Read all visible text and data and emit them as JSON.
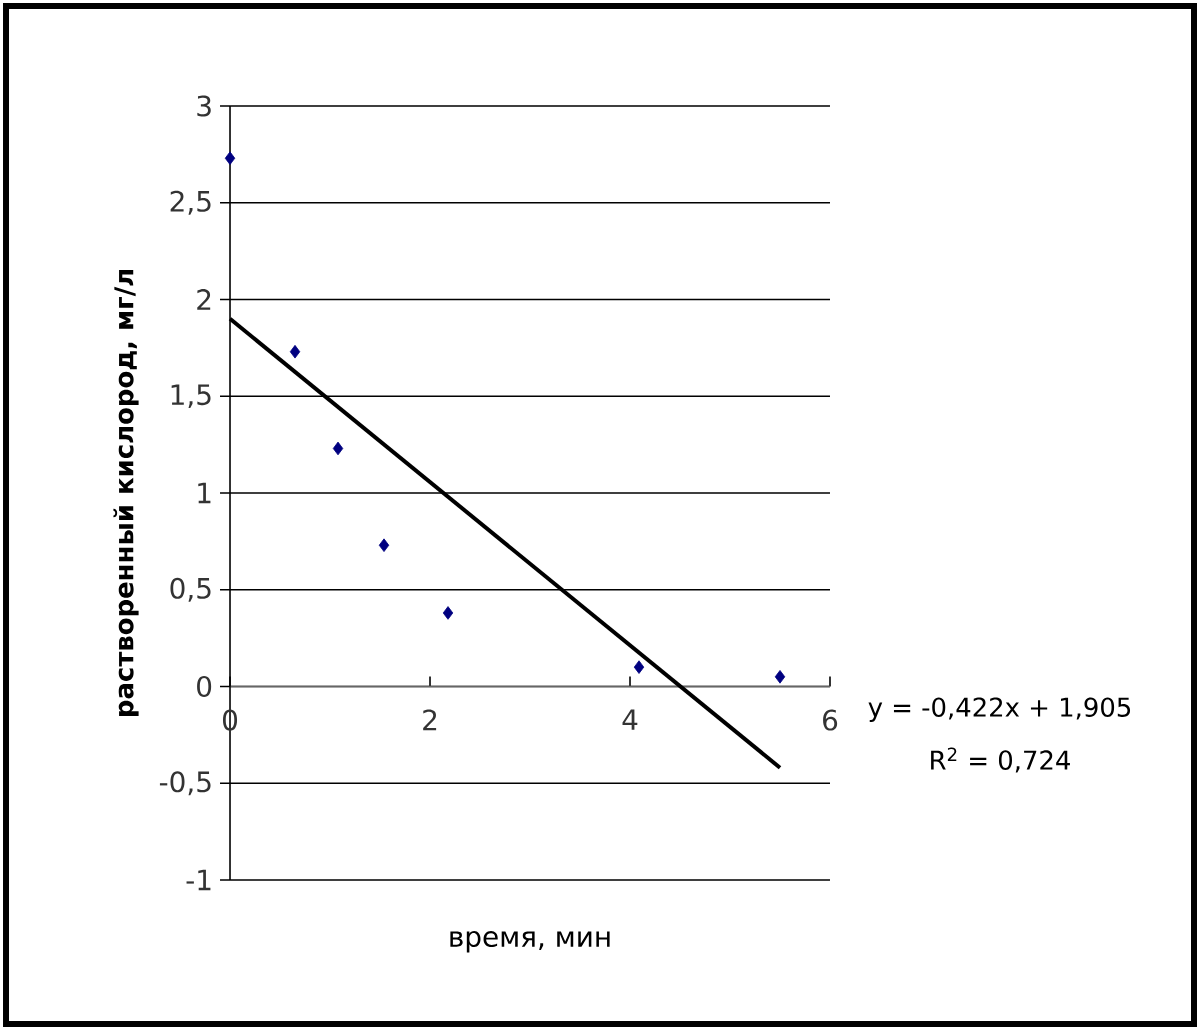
{
  "chart_data": {
    "type": "scatter",
    "xlabel": "время, мин",
    "ylabel": "растворенный кислород, мг/л",
    "xlim": [
      0,
      6
    ],
    "xticks": [
      0,
      2,
      4,
      6
    ],
    "ylim": [
      -1,
      3
    ],
    "yticks": [
      -1,
      {
        "value": -0.5,
        "label": "-0,5"
      },
      0,
      {
        "value": 0.5,
        "label": "0,5"
      },
      1,
      {
        "value": 1.5,
        "label": "1,5"
      },
      2,
      {
        "value": 2.5,
        "label": "2,5"
      },
      3
    ],
    "grid": "y",
    "marker": "diamond",
    "series": [
      {
        "color": "#000080",
        "x": [
          0,
          0.65,
          1.08,
          1.54,
          2.18,
          4.09,
          5.5
        ],
        "values": [
          2.73,
          1.73,
          1.23,
          0.73,
          0.38,
          0.1,
          0.05
        ]
      },
      {
        "type": "line",
        "color": "#000000",
        "line_style": "solid",
        "marker": "none",
        "x": [
          0,
          5.5
        ],
        "values": [
          1.9,
          -0.42
        ]
      }
    ],
    "annotations": [
      "y = -0,422x + 1,905",
      "R$^{2}$ = 0,724"
    ]
  }
}
